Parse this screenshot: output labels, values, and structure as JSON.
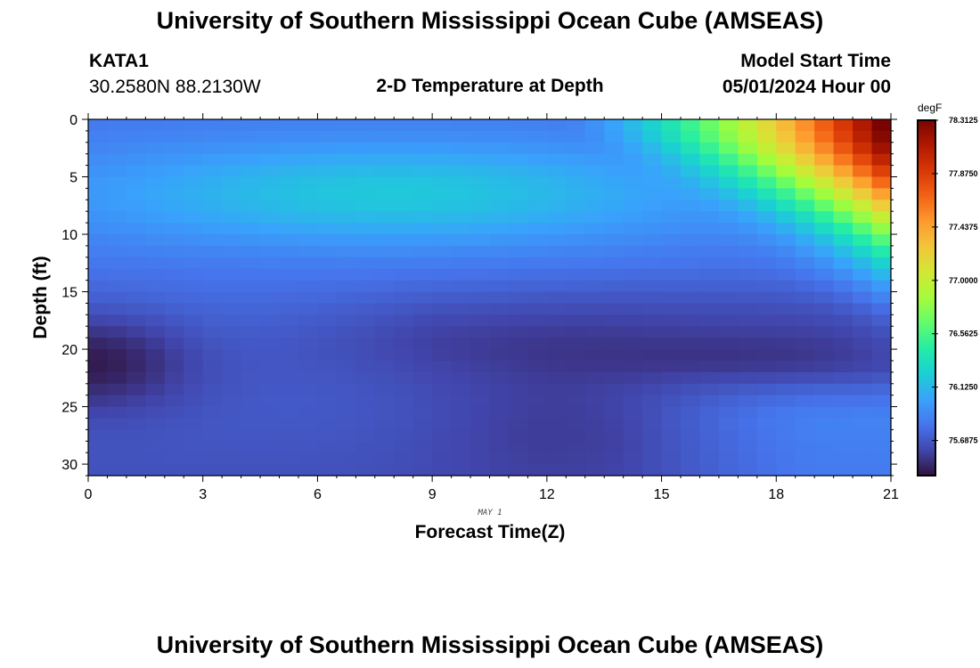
{
  "header": {
    "title": "University of Southern Mississippi Ocean Cube (AMSEAS)",
    "station": "KATA1",
    "coords": "30.2580N  88.2130W",
    "plot_title": "2-D Temperature at Depth",
    "model_label": "Model Start Time",
    "model_time": "05/01/2024 Hour 00"
  },
  "footer": {
    "title": "University of Southern Mississippi Ocean Cube (AMSEAS)"
  },
  "chart_data": {
    "type": "heatmap",
    "title": "2-D Temperature at Depth",
    "xlabel": "Forecast Time(Z)",
    "xsublabel": "MAY 1",
    "ylabel": "Depth (ft)",
    "xlim": [
      0,
      21
    ],
    "ylim": [
      31,
      0
    ],
    "x_ticks": [
      0,
      3,
      6,
      9,
      12,
      15,
      18,
      21
    ],
    "y_ticks": [
      0,
      5,
      10,
      15,
      20,
      25,
      30
    ],
    "colorbar": {
      "unit": "degF",
      "min": 75.4,
      "max": 78.3125,
      "tick_values": [
        78.3125,
        77.875,
        77.4375,
        77.0,
        76.5625,
        76.125,
        75.6875
      ],
      "tick_labels": [
        "78.3125",
        "77.8750",
        "77.4375",
        "77.0000",
        "76.5625",
        "76.1250",
        "75.6875"
      ],
      "colors": [
        "#30123b",
        "#4145ab",
        "#4675ed",
        "#39a2fc",
        "#1bcfd4",
        "#24eca6",
        "#61fc6c",
        "#a4fc3b",
        "#d1e834",
        "#f3c63a",
        "#fe9b2d",
        "#f36315",
        "#d93806",
        "#b11901",
        "#7a0402"
      ]
    },
    "description_of_field": "Temperature (degF) vs forecast hour (0-21) and depth (0-31 ft). Warm surface layer (up to ~78.3 degF) appears after hour 15 in top 10 ft; cold layer (~75.5 degF) near 18-22 ft at hour 0 and 16-20 ft, and cold core below 17 ft around hours 10-14."
  }
}
